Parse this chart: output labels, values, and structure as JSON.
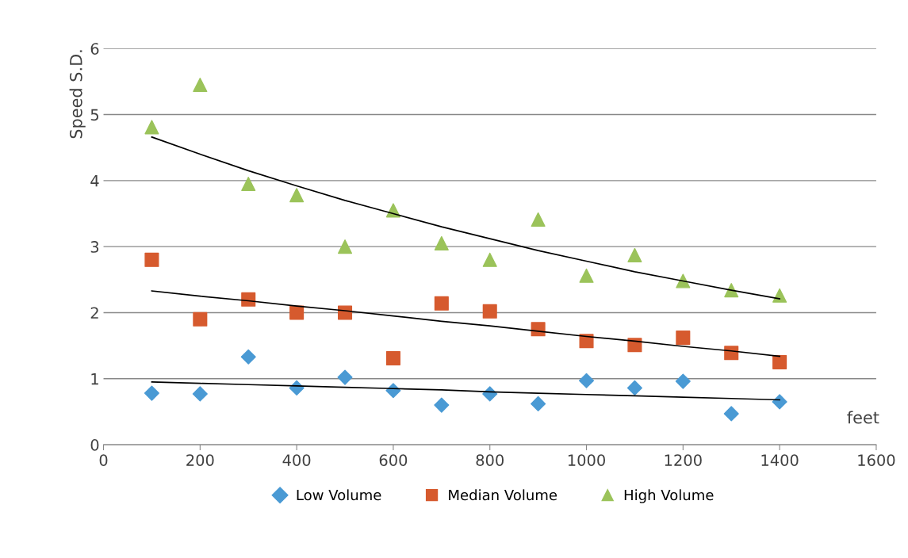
{
  "chart_data": {
    "type": "scatter",
    "xlabel": "feet",
    "ylabel": "Speed S.D.",
    "xlim": [
      0,
      1600
    ],
    "xticks": [
      0,
      200,
      400,
      600,
      800,
      1000,
      1200,
      1400,
      1600
    ],
    "ylim": [
      0,
      6
    ],
    "yticks": [
      0,
      1,
      2,
      3,
      4,
      5,
      6
    ],
    "grid": "y",
    "legend": "bottom",
    "x": [
      100,
      200,
      300,
      400,
      500,
      600,
      700,
      800,
      900,
      1000,
      1100,
      1200,
      1300,
      1400
    ],
    "series": [
      {
        "name": "Low Volume",
        "color": "#4a9ad4",
        "marker": "diamond",
        "values": [
          0.78,
          0.77,
          1.33,
          0.86,
          1.02,
          0.82,
          0.6,
          0.77,
          0.62,
          0.97,
          0.86,
          0.96,
          0.47,
          0.65
        ]
      },
      {
        "name": "Median Volume",
        "color": "#d65a2e",
        "marker": "square",
        "values": [
          2.8,
          1.9,
          2.2,
          2.0,
          2.0,
          1.31,
          2.14,
          2.02,
          1.75,
          1.57,
          1.51,
          1.62,
          1.39,
          1.25
        ]
      },
      {
        "name": "High Volume",
        "color": "#9bc35a",
        "marker": "triangle",
        "values": [
          4.81,
          5.45,
          3.95,
          3.78,
          3.0,
          3.55,
          3.05,
          2.8,
          3.41,
          2.56,
          2.87,
          2.48,
          2.34,
          2.26
        ]
      },
      {
        "type": "line",
        "color": "#000000",
        "values": [
          0.95,
          0.93,
          0.91,
          0.89,
          0.87,
          0.85,
          0.83,
          0.8,
          0.78,
          0.76,
          0.74,
          0.72,
          0.7,
          0.68
        ]
      },
      {
        "type": "line",
        "color": "#000000",
        "values": [
          2.33,
          2.25,
          2.18,
          2.1,
          2.03,
          1.95,
          1.87,
          1.8,
          1.72,
          1.64,
          1.57,
          1.49,
          1.42,
          1.34
        ]
      },
      {
        "type": "line",
        "color": "#000000",
        "values": [
          4.66,
          4.4,
          4.15,
          3.92,
          3.7,
          3.5,
          3.3,
          3.12,
          2.94,
          2.78,
          2.62,
          2.48,
          2.34,
          2.21
        ]
      }
    ]
  }
}
